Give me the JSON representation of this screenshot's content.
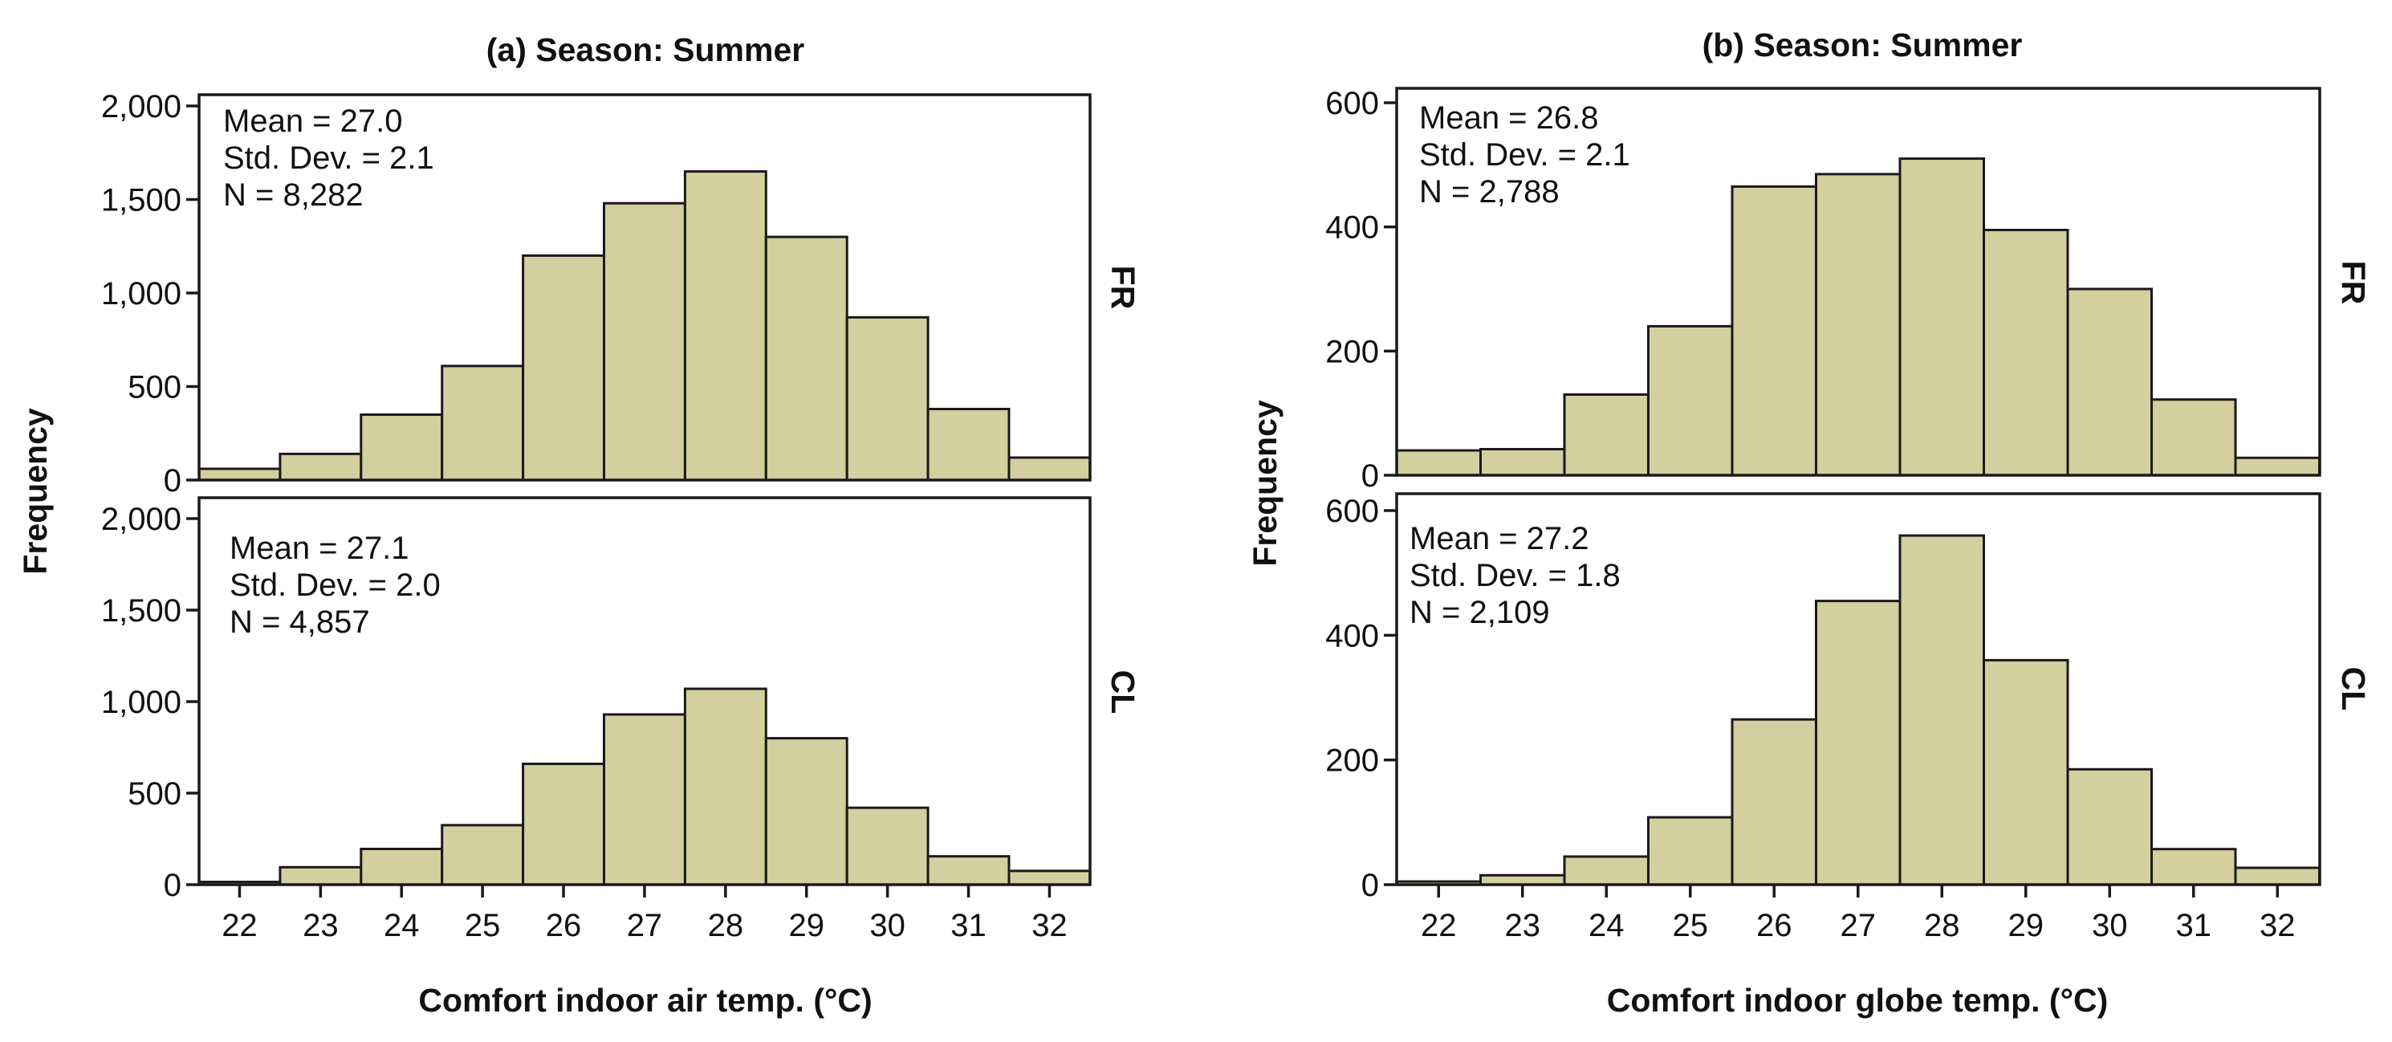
{
  "chart_data": [
    {
      "type": "bar",
      "title": "(a) Season: Summer",
      "xlabel": "Comfort indoor air temp. (°C)",
      "ylabel": "Frequency",
      "categories": [
        "22",
        "23",
        "24",
        "25",
        "26",
        "27",
        "28",
        "29",
        "30",
        "31",
        "32"
      ],
      "ylim": [
        0,
        2000
      ],
      "yticks": [
        0,
        500,
        1000,
        1500,
        2000
      ],
      "ytick_labels": [
        "0",
        "500",
        "1,000",
        "1,500",
        "2,000"
      ],
      "grid": false,
      "panels": [
        {
          "label": "FR",
          "values": [
            60,
            140,
            350,
            610,
            1200,
            1480,
            1650,
            1300,
            870,
            380,
            120
          ],
          "stats": [
            "Mean = 27.0",
            "Std. Dev. = 2.1",
            "N = 8,282"
          ]
        },
        {
          "label": "CL",
          "values": [
            15,
            95,
            195,
            325,
            660,
            930,
            1070,
            800,
            420,
            155,
            75
          ],
          "stats": [
            "Mean = 27.1",
            "Std. Dev. = 2.0",
            "N = 4,857"
          ]
        }
      ]
    },
    {
      "type": "bar",
      "title": "(b) Season: Summer",
      "xlabel": "Comfort indoor globe temp. (°C)",
      "ylabel": "Frequency",
      "categories": [
        "22",
        "23",
        "24",
        "25",
        "26",
        "27",
        "28",
        "29",
        "30",
        "31",
        "32"
      ],
      "ylim": [
        0,
        600
      ],
      "yticks": [
        0,
        200,
        400,
        600
      ],
      "ytick_labels": [
        "0",
        "200",
        "400",
        "600"
      ],
      "grid": false,
      "panels": [
        {
          "label": "FR",
          "values": [
            40,
            42,
            130,
            240,
            465,
            485,
            510,
            395,
            300,
            122,
            28
          ],
          "stats": [
            "Mean = 26.8",
            "Std. Dev. = 2.1",
            "N = 2,788"
          ]
        },
        {
          "label": "CL",
          "values": [
            5,
            15,
            45,
            108,
            265,
            455,
            560,
            360,
            185,
            57,
            27
          ],
          "stats": [
            "Mean = 27.2",
            "Std. Dev. = 1.8",
            "N = 2,109"
          ]
        }
      ]
    }
  ]
}
